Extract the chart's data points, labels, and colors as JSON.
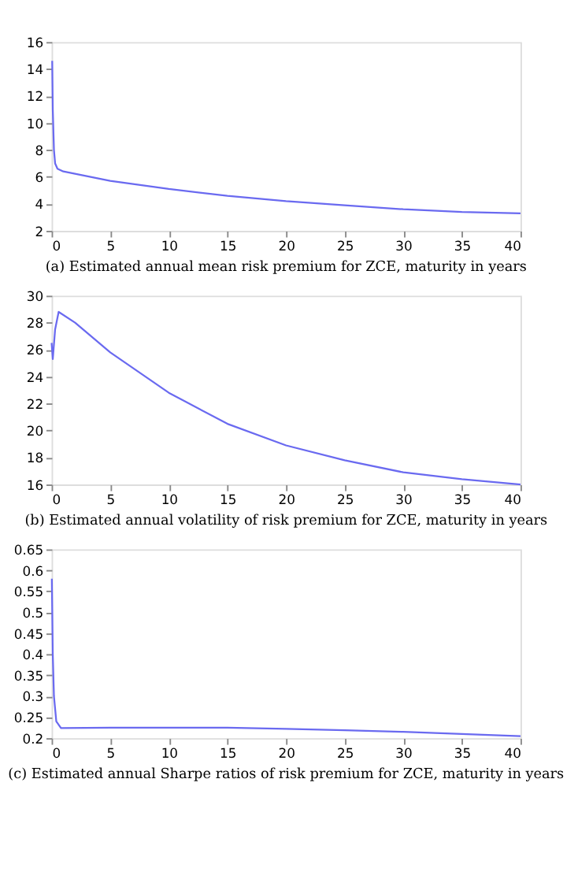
{
  "chart_data": [
    {
      "type": "line",
      "title": "(a) Estimated annual mean risk premium for ZCE, maturity in years",
      "xlim": [
        0,
        40
      ],
      "xticks": [
        0,
        5,
        10,
        15,
        20,
        25,
        30,
        35,
        40
      ],
      "ylim": [
        2,
        16
      ],
      "yticks": [
        2,
        4,
        6,
        8,
        10,
        12,
        14,
        16
      ],
      "grid": false,
      "series": [
        {
          "color": "#6a6af0",
          "x": [
            0.05,
            0.1,
            0.2,
            0.3,
            0.5,
            1,
            5,
            10,
            15,
            20,
            25,
            30,
            35,
            40
          ],
          "values": [
            14.6,
            11,
            8,
            7,
            6.6,
            6.4,
            5.7,
            5.1,
            4.6,
            4.2,
            3.9,
            3.6,
            3.4,
            3.3
          ]
        }
      ]
    },
    {
      "type": "line",
      "title": "(b) Estimated annual volatility of risk premium for ZCE, maturity in years",
      "xlim": [
        0,
        40
      ],
      "xticks": [
        0,
        5,
        10,
        15,
        20,
        25,
        30,
        35,
        40
      ],
      "ylim": [
        16,
        30
      ],
      "yticks": [
        16,
        18,
        20,
        22,
        24,
        26,
        28,
        30
      ],
      "grid": false,
      "series": [
        {
          "color": "#6a6af0",
          "x": [
            0,
            0.1,
            0.3,
            0.6,
            2,
            5,
            10,
            15,
            20,
            25,
            30,
            35,
            40
          ],
          "values": [
            26.5,
            25.3,
            27.5,
            28.8,
            28.0,
            25.8,
            22.8,
            20.5,
            18.9,
            17.8,
            16.9,
            16.4,
            16.0
          ]
        }
      ]
    },
    {
      "type": "line",
      "title": "(c) Estimated annual Sharpe ratios of risk premium for ZCE, maturity in years",
      "xlim": [
        0,
        40
      ],
      "xticks": [
        0,
        5,
        10,
        15,
        20,
        25,
        30,
        35,
        40
      ],
      "ylim": [
        0.2,
        0.65
      ],
      "yticks": [
        0.2,
        0.25,
        0.3,
        0.35,
        0.4,
        0.45,
        0.5,
        0.55,
        0.6,
        0.65
      ],
      "grid": false,
      "series": [
        {
          "color": "#6a6af0",
          "x": [
            0.02,
            0.1,
            0.2,
            0.4,
            0.8,
            5,
            10,
            15,
            20,
            25,
            30,
            35,
            40
          ],
          "values": [
            0.58,
            0.4,
            0.3,
            0.24,
            0.224,
            0.225,
            0.225,
            0.225,
            0.222,
            0.219,
            0.215,
            0.21,
            0.205
          ]
        }
      ]
    }
  ]
}
